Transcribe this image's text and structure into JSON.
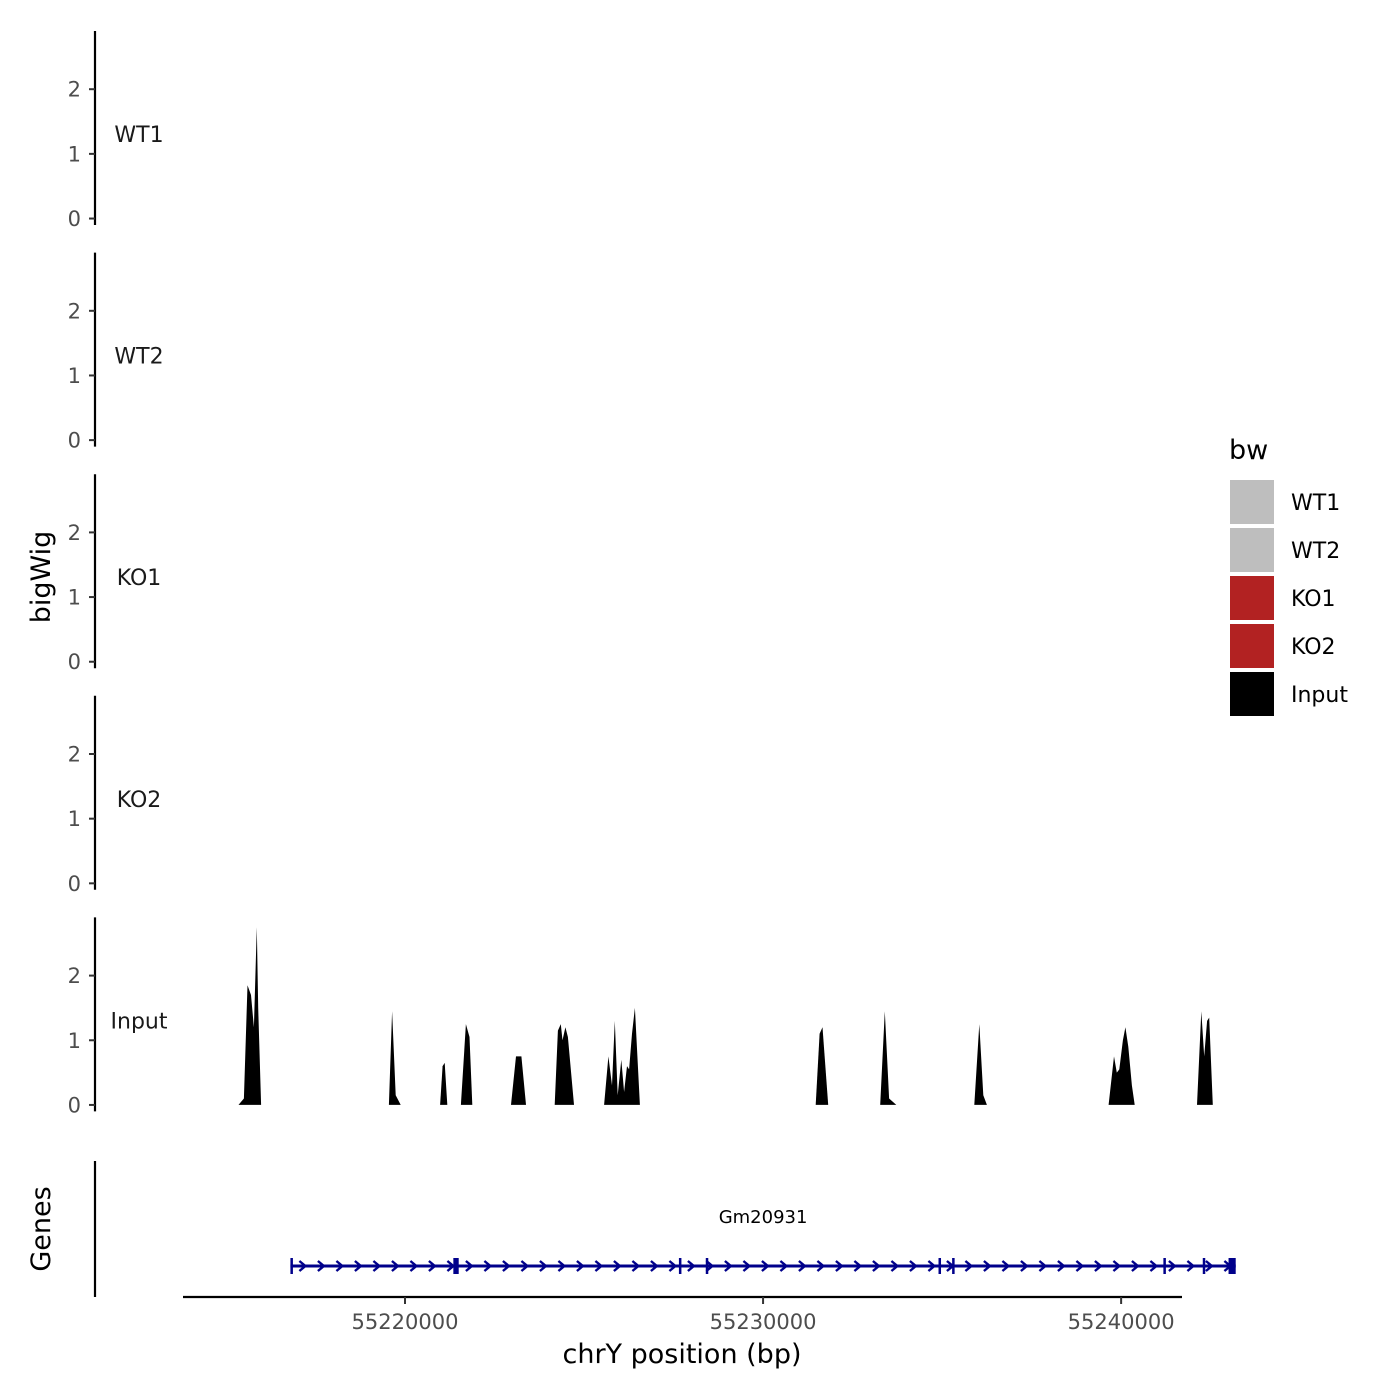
{
  "chart_data": {
    "type": "area",
    "ylabel": "bigWig",
    "xlabel": "chrY position (bp)",
    "genes_label": "Genes",
    "xlim": [
      55213800,
      55241700
    ],
    "ylim": [
      -0.1,
      2.9
    ],
    "y_ticks": [
      0,
      1,
      2
    ],
    "y_tick_labels": [
      "0",
      "1",
      "2"
    ],
    "x_ticks": [
      55220000,
      55230000,
      55240000
    ],
    "x_tick_labels": [
      "55220000",
      "55230000",
      "55240000"
    ],
    "legend": {
      "title": "bw",
      "placement": "right",
      "items": [
        {
          "label": "WT1",
          "color": "#bebebe"
        },
        {
          "label": "WT2",
          "color": "#bebebe"
        },
        {
          "label": "KO1",
          "color": "#b22222"
        },
        {
          "label": "KO2",
          "color": "#b22222"
        },
        {
          "label": "Input",
          "color": "#000000"
        }
      ]
    },
    "tracks": [
      {
        "name": "WT1",
        "color": "#bebebe",
        "points": []
      },
      {
        "name": "WT2",
        "color": "#bebebe",
        "points": []
      },
      {
        "name": "KO1",
        "color": "#b22222",
        "points": []
      },
      {
        "name": "KO2",
        "color": "#b22222",
        "points": []
      },
      {
        "name": "Input",
        "color": "#000000",
        "points": [
          [
            55215350,
            0
          ],
          [
            55215500,
            0.1
          ],
          [
            55215600,
            1.85
          ],
          [
            55215700,
            1.7
          ],
          [
            55215780,
            1.2
          ],
          [
            55215860,
            2.75
          ],
          [
            55215900,
            1.5
          ],
          [
            55215980,
            0
          ],
          [
            55219550,
            0
          ],
          [
            55219640,
            1.45
          ],
          [
            55219740,
            0.15
          ],
          [
            55219880,
            0
          ],
          [
            55220980,
            0
          ],
          [
            55221050,
            0.6
          ],
          [
            55221110,
            0.65
          ],
          [
            55221180,
            0
          ],
          [
            55221560,
            0
          ],
          [
            55221700,
            1.25
          ],
          [
            55221800,
            1.05
          ],
          [
            55221880,
            0
          ],
          [
            55222960,
            0
          ],
          [
            55223100,
            0.75
          ],
          [
            55223250,
            0.75
          ],
          [
            55223380,
            0
          ],
          [
            55224180,
            0
          ],
          [
            55224270,
            1.15
          ],
          [
            55224350,
            1.25
          ],
          [
            55224400,
            1.0
          ],
          [
            55224480,
            1.2
          ],
          [
            55224550,
            1.05
          ],
          [
            55224720,
            0
          ],
          [
            55225560,
            0
          ],
          [
            55225680,
            0.75
          ],
          [
            55225780,
            0.3
          ],
          [
            55225860,
            1.3
          ],
          [
            55225940,
            0.15
          ],
          [
            55226040,
            0.7
          ],
          [
            55226120,
            0.2
          ],
          [
            55226200,
            0.6
          ],
          [
            55226260,
            0.55
          ],
          [
            55226340,
            1.1
          ],
          [
            55226420,
            1.5
          ],
          [
            55226560,
            0
          ],
          [
            55231470,
            0
          ],
          [
            55231580,
            1.1
          ],
          [
            55231660,
            1.2
          ],
          [
            55231820,
            0
          ],
          [
            55233270,
            0
          ],
          [
            55233400,
            1.45
          ],
          [
            55233520,
            0.1
          ],
          [
            55233720,
            0
          ],
          [
            55235900,
            0
          ],
          [
            55236040,
            1.25
          ],
          [
            55236150,
            0.15
          ],
          [
            55236250,
            0
          ],
          [
            55239650,
            0
          ],
          [
            55239800,
            0.75
          ],
          [
            55239880,
            0.5
          ],
          [
            55239950,
            0.55
          ],
          [
            55240050,
            1.0
          ],
          [
            55240120,
            1.2
          ],
          [
            55240200,
            0.9
          ],
          [
            55240300,
            0.3
          ],
          [
            55240380,
            0
          ],
          [
            55242120,
            0
          ],
          [
            55242240,
            1.45
          ],
          [
            55242320,
            0.75
          ],
          [
            55242400,
            1.3
          ],
          [
            55242460,
            1.35
          ],
          [
            55242560,
            0
          ]
        ]
      }
    ],
    "genes": [
      {
        "name": "Gm20931",
        "start": 55216800,
        "end": 55243200,
        "strand": "+",
        "color": "#00008b",
        "exons": [
          [
            55216800,
            55216850
          ],
          [
            55221350,
            55221500
          ],
          [
            55227650,
            55227700
          ],
          [
            55228400,
            55228450
          ],
          [
            55234900,
            55234950
          ],
          [
            55235280,
            55235320
          ],
          [
            55241180,
            55241230
          ],
          [
            55242280,
            55242330
          ],
          [
            55243000,
            55243200
          ],
          [
            55243080,
            55243180
          ]
        ]
      }
    ]
  }
}
